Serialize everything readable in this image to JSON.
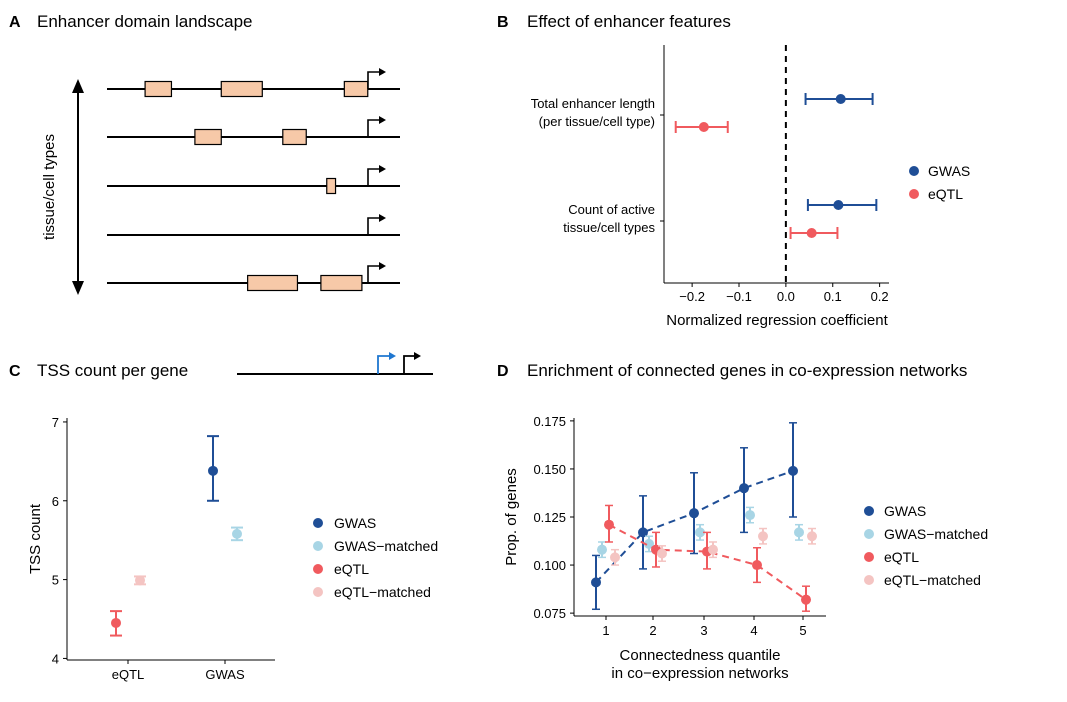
{
  "panels": {
    "A": {
      "letter": "A",
      "title": "Enhancer domain landscape",
      "ylabel": "tissue/cell types"
    },
    "B": {
      "letter": "B",
      "title": "Effect of enhancer features"
    },
    "C": {
      "letter": "C",
      "title": "TSS count per gene"
    },
    "D": {
      "letter": "D",
      "title": "Enrichment of connected genes in co-expression networks"
    }
  },
  "colors": {
    "GWAS": "#1f4e96",
    "GWAS-matched": "#a8d5e5",
    "eQTL": "#f05a5e",
    "eQTL-matched": "#f4c4c2",
    "enhancer": "#f7c9a8"
  },
  "chart_data": [
    {
      "panel": "A",
      "type": "diagram",
      "ylabel": "tissue/cell types",
      "rows": [
        {
          "enhancers": [
            [
              0.13,
              0.22
            ],
            [
              0.39,
              0.53
            ],
            [
              0.81,
              0.89
            ]
          ]
        },
        {
          "enhancers": [
            [
              0.3,
              0.39
            ],
            [
              0.6,
              0.68
            ]
          ]
        },
        {
          "enhancers": [
            [
              0.75,
              0.78
            ]
          ]
        },
        {
          "enhancers": []
        },
        {
          "enhancers": [
            [
              0.48,
              0.65
            ],
            [
              0.73,
              0.87
            ]
          ]
        }
      ]
    },
    {
      "panel": "B",
      "type": "scatter",
      "title": "Effect of enhancer features",
      "xlabel": "Normalized regression coefficient",
      "categories": [
        "Total enhancer length\n(per tissue/cell type)",
        "Count of active\ntissue/cell types"
      ],
      "xlim": [
        -0.26,
        0.22
      ],
      "xticks": [
        -0.2,
        -0.1,
        0.0,
        0.1,
        0.2
      ],
      "xtick_labels": [
        "−0.2",
        "−0.1",
        "0.0",
        "0.1",
        "0.2"
      ],
      "reference_line": 0,
      "legend": "right",
      "series": [
        {
          "name": "GWAS",
          "values": [
            0.117,
            0.112
          ],
          "lower": [
            0.042,
            0.047
          ],
          "upper": [
            0.185,
            0.193
          ]
        },
        {
          "name": "eQTL",
          "values": [
            -0.175,
            0.055
          ],
          "lower": [
            -0.235,
            0.01
          ],
          "upper": [
            -0.124,
            0.11
          ]
        }
      ]
    },
    {
      "panel": "C",
      "type": "scatter",
      "title": "TSS count per gene",
      "ylabel": "TSS count",
      "categories": [
        "eQTL",
        "GWAS"
      ],
      "ylim": [
        3.98,
        7.05
      ],
      "yticks": [
        4,
        5,
        6,
        7
      ],
      "legend": "right",
      "series": [
        {
          "name": "GWAS",
          "x": [
            "GWAS"
          ],
          "values": [
            6.38
          ],
          "lower": [
            6.0
          ],
          "upper": [
            6.82
          ]
        },
        {
          "name": "GWAS−matched",
          "x": [
            "GWAS"
          ],
          "values": [
            5.58
          ],
          "lower": [
            5.5
          ],
          "upper": [
            5.66
          ]
        },
        {
          "name": "eQTL",
          "x": [
            "eQTL"
          ],
          "values": [
            4.45
          ],
          "lower": [
            4.29
          ],
          "upper": [
            4.6
          ]
        },
        {
          "name": "eQTL−matched",
          "x": [
            "eQTL"
          ],
          "values": [
            4.99
          ],
          "lower": [
            4.94
          ],
          "upper": [
            5.04
          ]
        }
      ]
    },
    {
      "panel": "D",
      "type": "line",
      "title": "Enrichment of connected genes in co-expression networks",
      "xlabel": "Connectedness quantile\nin co−expression networks",
      "ylabel": "Prop. of genes",
      "x": [
        1,
        2,
        3,
        4,
        5
      ],
      "ylim": [
        0.0735,
        0.1765
      ],
      "yticks": [
        0.075,
        0.1,
        0.125,
        0.15,
        0.175
      ],
      "ytick_labels": [
        "0.075",
        "0.100",
        "0.125",
        "0.150",
        "0.175"
      ],
      "legend": "right",
      "series": [
        {
          "name": "GWAS",
          "values": [
            0.091,
            0.117,
            0.127,
            0.14,
            0.149
          ],
          "lower": [
            0.077,
            0.098,
            0.106,
            0.117,
            0.125
          ],
          "upper": [
            0.105,
            0.136,
            0.148,
            0.161,
            0.174
          ],
          "line": "dashed"
        },
        {
          "name": "GWAS−matched",
          "values": [
            0.108,
            0.111,
            0.117,
            0.126,
            0.117
          ],
          "lower": [
            0.104,
            0.107,
            0.113,
            0.122,
            0.113
          ],
          "upper": [
            0.112,
            0.115,
            0.121,
            0.13,
            0.121
          ]
        },
        {
          "name": "eQTL",
          "values": [
            0.121,
            0.108,
            0.107,
            0.1,
            0.082
          ],
          "lower": [
            0.112,
            0.099,
            0.098,
            0.091,
            0.076
          ],
          "upper": [
            0.131,
            0.117,
            0.117,
            0.109,
            0.089
          ],
          "line": "dashed"
        },
        {
          "name": "eQTL−matched",
          "values": [
            0.104,
            0.106,
            0.108,
            0.115,
            0.115
          ],
          "lower": [
            0.1,
            0.102,
            0.104,
            0.111,
            0.111
          ],
          "upper": [
            0.108,
            0.11,
            0.112,
            0.119,
            0.119
          ]
        }
      ]
    }
  ]
}
